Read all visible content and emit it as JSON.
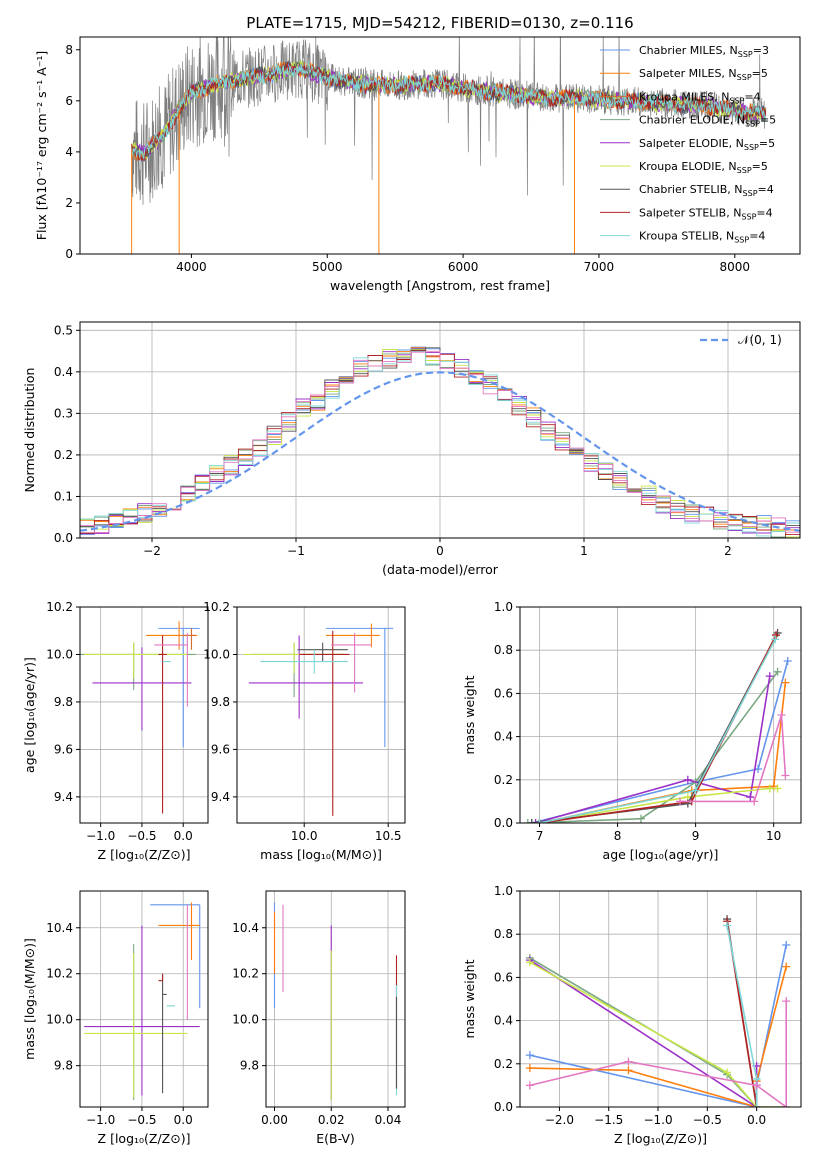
{
  "title": "PLATE=1715, MJD=54212, FIBERID=0130, z=0.116",
  "colors": {
    "chabrier_miles": "#6495ed",
    "salpeter_miles": "#ff7f0e",
    "kroupa_miles": "#d36c2a",
    "chabrier_elodie": "#7aa882",
    "salpeter_elodie": "#9b30c8",
    "kroupa_elodie": "#c8e64a",
    "chabrier_stelib": "#555555",
    "salpeter_stelib": "#b22222",
    "kroupa_stelib": "#7fd6d6",
    "spectrum": "#7f7f7f",
    "normal_curve": "#6495ed",
    "pink": "#e377c2"
  },
  "chart_data": [
    {
      "id": "spectrum",
      "type": "line",
      "title": "PLATE=1715, MJD=54212, FIBERID=0130, z=0.116",
      "xlabel": "wavelength [Angstrom, rest frame]",
      "ylabel": "Flux [fλ10⁻¹⁷ erg cm⁻² s⁻¹ A⁻¹]",
      "xlim": [
        3180,
        8480
      ],
      "ylim": [
        0,
        8.5
      ],
      "xticks": [
        4000,
        5000,
        6000,
        7000,
        8000
      ],
      "yticks": [
        0,
        2,
        4,
        6,
        8
      ],
      "legend_position": "upper-right",
      "legend": [
        {
          "label": "Chabrier MILES, N",
          "sub": "SSP",
          "suffix": "=3",
          "color": "#6495ed"
        },
        {
          "label": "Salpeter MILES, N",
          "sub": "SSP",
          "suffix": "=5",
          "color": "#ff7f0e"
        },
        {
          "label": "Kroupa MILES, N",
          "sub": "SSP",
          "suffix": "=4",
          "color": "#d36c2a"
        },
        {
          "label": "Chabrier ELODIE, N",
          "sub": "SSP",
          "suffix": "=5",
          "color": "#7aa882"
        },
        {
          "label": "Salpeter ELODIE, N",
          "sub": "SSP",
          "suffix": "=5",
          "color": "#9b30c8"
        },
        {
          "label": "Kroupa ELODIE, N",
          "sub": "SSP",
          "suffix": "=5",
          "color": "#c8e64a"
        },
        {
          "label": "Chabrier STELIB, N",
          "sub": "SSP",
          "suffix": "=4",
          "color": "#555555"
        },
        {
          "label": "Salpeter STELIB, N",
          "sub": "SSP",
          "suffix": "=4",
          "color": "#b22222"
        },
        {
          "label": "Kroupa STELIB, N",
          "sub": "SSP",
          "suffix": "=4",
          "color": "#7fd6d6"
        }
      ],
      "continuum": [
        [
          3560,
          4.1
        ],
        [
          3650,
          3.9
        ],
        [
          3700,
          4.2
        ],
        [
          3800,
          4.7
        ],
        [
          3900,
          5.6
        ],
        [
          4000,
          6.3
        ],
        [
          4200,
          6.7
        ],
        [
          4400,
          6.9
        ],
        [
          4600,
          7.1
        ],
        [
          4800,
          7.3
        ],
        [
          5000,
          6.9
        ],
        [
          5200,
          6.7
        ],
        [
          5500,
          6.6
        ],
        [
          5800,
          6.7
        ],
        [
          6000,
          6.5
        ],
        [
          6300,
          6.3
        ],
        [
          6600,
          6.1
        ],
        [
          6900,
          6.1
        ],
        [
          7200,
          6.0
        ],
        [
          7500,
          5.9
        ],
        [
          7800,
          5.8
        ],
        [
          8000,
          5.6
        ],
        [
          8230,
          5.5
        ]
      ],
      "dips": [
        {
          "x": 3560,
          "y": 0.0
        },
        {
          "x": 3910,
          "y": 0.0
        },
        {
          "x": 5380,
          "y": 0.0
        },
        {
          "x": 6820,
          "y": 0.0
        }
      ]
    },
    {
      "id": "residuals",
      "type": "histogram",
      "xlabel": "(data-model)/error",
      "ylabel": "Normed distribution",
      "xlim": [
        -2.5,
        2.5
      ],
      "ylim": [
        0,
        0.52
      ],
      "xticks": [
        -2,
        -1,
        0,
        1,
        2
      ],
      "yticks": [
        0.0,
        0.1,
        0.2,
        0.3,
        0.4,
        0.5
      ],
      "legend_position": "upper-right",
      "legend_label": "𝒩(0, 1)",
      "bin_width": 0.1,
      "base": [
        0.025,
        0.03,
        0.04,
        0.05,
        0.06,
        0.075,
        0.09,
        0.11,
        0.13,
        0.15,
        0.175,
        0.195,
        0.22,
        0.25,
        0.28,
        0.31,
        0.33,
        0.36,
        0.385,
        0.41,
        0.42,
        0.43,
        0.44,
        0.445,
        0.44,
        0.43,
        0.41,
        0.39,
        0.37,
        0.35,
        0.32,
        0.29,
        0.26,
        0.23,
        0.2,
        0.18,
        0.16,
        0.14,
        0.12,
        0.1,
        0.085,
        0.07,
        0.06,
        0.05,
        0.045,
        0.04,
        0.035,
        0.03,
        0.025,
        0.02
      ]
    },
    {
      "id": "z-vs-age",
      "type": "errorbar",
      "xlabel": "Z [log₁₀(Z/Z⊙)]",
      "ylabel": "age  [log₁₀(age/yr)]",
      "xlim": [
        -1.25,
        0.3
      ],
      "ylim": [
        9.29,
        10.2
      ],
      "xticks": [
        -1.0,
        -0.5,
        0.0
      ],
      "yticks": [
        9.4,
        9.6,
        9.8,
        10.0,
        10.2
      ],
      "points": [
        {
          "x": 0.0,
          "xerr": [
            0.3,
            0.2
          ],
          "y": 10.11,
          "yerr": [
            0.5,
            0.0
          ],
          "color": "#6495ed"
        },
        {
          "x": -0.05,
          "xerr": [
            0.4,
            0.22
          ],
          "y": 10.08,
          "yerr": [
            0.06,
            0.06
          ],
          "color": "#ff7f0e"
        },
        {
          "x": 0.1,
          "xerr": [
            0.1,
            0.05
          ],
          "y": 10.08,
          "yerr": [
            0.06,
            0.03
          ],
          "color": "#d36c2a"
        },
        {
          "x": -0.6,
          "xerr": [
            0.7,
            0.75
          ],
          "y": 10.0,
          "yerr": [
            0.15,
            0.05
          ],
          "color": "#7aa882"
        },
        {
          "x": -0.5,
          "xerr": [
            0.6,
            0.6
          ],
          "y": 9.88,
          "yerr": [
            0.2,
            0.15
          ],
          "color": "#9b30c8"
        },
        {
          "x": -0.6,
          "xerr": [
            0.6,
            0.65
          ],
          "y": 10.0,
          "yerr": [
            0.1,
            0.05
          ],
          "color": "#c8e64a"
        },
        {
          "x": -0.25,
          "xerr": [
            0.0,
            0.0
          ],
          "y": 10.02,
          "yerr": [
            0.0,
            0.0
          ],
          "color": "#555555"
        },
        {
          "x": -0.25,
          "xerr": [
            0.05,
            0.05
          ],
          "y": 10.0,
          "yerr": [
            0.67,
            0.08
          ],
          "color": "#b22222"
        },
        {
          "x": -0.2,
          "xerr": [
            0.05,
            0.05
          ],
          "y": 9.97,
          "yerr": [
            0.0,
            0.0
          ],
          "color": "#7fd6d6"
        },
        {
          "x": 0.05,
          "xerr": [
            0.4,
            0.0
          ],
          "y": 10.04,
          "yerr": [
            0.26,
            0.05
          ],
          "color": "#e377c2"
        }
      ]
    },
    {
      "id": "mass-vs-age",
      "type": "errorbar",
      "xlabel": "mass [log₁₀(M/M⊙)]",
      "ylabel": "",
      "xlim": [
        9.6,
        10.6
      ],
      "ylim": [
        9.29,
        10.2
      ],
      "xticks": [
        10.0,
        10.5
      ],
      "yticks": [
        9.4,
        9.6,
        9.8,
        10.0,
        10.2
      ],
      "points": [
        {
          "x": 10.48,
          "xerr": [
            0.35,
            0.05
          ],
          "y": 10.11,
          "yerr": [
            0.5,
            0.0
          ],
          "color": "#6495ed"
        },
        {
          "x": 10.4,
          "xerr": [
            0.27,
            0.05
          ],
          "y": 10.08,
          "yerr": [
            0.05,
            0.05
          ],
          "color": "#ff7f0e"
        },
        {
          "x": 9.94,
          "xerr": [
            0.25,
            0.3
          ],
          "y": 10.0,
          "yerr": [
            0.18,
            0.05
          ],
          "color": "#7aa882"
        },
        {
          "x": 9.97,
          "xerr": [
            0.3,
            0.38
          ],
          "y": 9.88,
          "yerr": [
            0.15,
            0.2
          ],
          "color": "#9b30c8"
        },
        {
          "x": 9.94,
          "xerr": [
            0.3,
            0.3
          ],
          "y": 10.0,
          "yerr": [
            0.08,
            0.05
          ],
          "color": "#c8e64a"
        },
        {
          "x": 10.11,
          "xerr": [
            0.15,
            0.15
          ],
          "y": 10.02,
          "yerr": [
            0.05,
            0.03
          ],
          "color": "#555555"
        },
        {
          "x": 10.17,
          "xerr": [
            0.2,
            0.1
          ],
          "y": 10.0,
          "yerr": [
            0.68,
            0.1
          ],
          "color": "#b22222"
        },
        {
          "x": 10.06,
          "xerr": [
            0.32,
            0.2
          ],
          "y": 9.97,
          "yerr": [
            0.05,
            0.05
          ],
          "color": "#7fd6d6"
        },
        {
          "x": 10.3,
          "xerr": [
            0.14,
            0.1
          ],
          "y": 10.04,
          "yerr": [
            0.2,
            0.05
          ],
          "color": "#e377c2"
        }
      ]
    },
    {
      "id": "age-vs-massweight",
      "type": "line",
      "xlabel": "age  [log₁₀(age/yr)]",
      "ylabel": "mass weight",
      "xlim": [
        6.75,
        10.35
      ],
      "ylim": [
        0,
        1.0
      ],
      "xticks": [
        7,
        8,
        9,
        10
      ],
      "yticks": [
        0.0,
        0.2,
        0.4,
        0.6,
        0.8,
        1.0
      ],
      "series": [
        {
          "color": "#6495ed",
          "x": [
            6.9,
            9.0,
            9.8,
            10.18
          ],
          "y": [
            0.0,
            0.19,
            0.25,
            0.75
          ]
        },
        {
          "color": "#ff7f0e",
          "x": [
            7.0,
            8.95,
            10.0,
            10.15
          ],
          "y": [
            0.0,
            0.15,
            0.17,
            0.65
          ]
        },
        {
          "color": "#7aa882",
          "x": [
            6.85,
            8.3,
            9.0,
            10.05
          ],
          "y": [
            0.0,
            0.02,
            0.19,
            0.7
          ]
        },
        {
          "color": "#9b30c8",
          "x": [
            6.95,
            8.9,
            9.7,
            9.95
          ],
          "y": [
            0.0,
            0.2,
            0.12,
            0.68
          ]
        },
        {
          "color": "#c8e64a",
          "x": [
            7.0,
            8.9,
            9.95,
            10.05
          ],
          "y": [
            0.0,
            0.12,
            0.16,
            0.16
          ]
        },
        {
          "color": "#555555",
          "x": [
            6.9,
            8.9,
            10.05
          ],
          "y": [
            0.0,
            0.09,
            0.88
          ]
        },
        {
          "color": "#b22222",
          "x": [
            7.0,
            8.95,
            10.03
          ],
          "y": [
            0.0,
            0.1,
            0.87
          ]
        },
        {
          "color": "#7fd6d6",
          "x": [
            7.0,
            9.0,
            10.02
          ],
          "y": [
            0.0,
            0.15,
            0.85
          ]
        },
        {
          "color": "#e377c2",
          "x": [
            8.8,
            9.75,
            10.1,
            10.15
          ],
          "y": [
            0.1,
            0.1,
            0.5,
            0.22
          ]
        }
      ]
    },
    {
      "id": "z-vs-mass",
      "type": "errorbar",
      "xlabel": "Z [log₁₀(Z/Z⊙)]",
      "ylabel": "mass [log₁₀(M/M⊙)]",
      "xlim": [
        -1.25,
        0.3
      ],
      "ylim": [
        9.62,
        10.56
      ],
      "xticks": [
        -1.0,
        -0.5,
        0.0
      ],
      "yticks": [
        9.8,
        10.0,
        10.2,
        10.4
      ],
      "points": [
        {
          "x": 0.2,
          "xerr": [
            0.6,
            0.0
          ],
          "y": 10.5,
          "yerr": [
            0.45,
            0.0
          ],
          "color": "#6495ed"
        },
        {
          "x": 0.1,
          "xerr": [
            0.4,
            0.1
          ],
          "y": 10.41,
          "yerr": [
            0.15,
            0.1
          ],
          "color": "#ff7f0e"
        },
        {
          "x": -1.0,
          "xerr": [
            0.0,
            0.0
          ],
          "y": 10.4,
          "yerr": [
            0.0,
            0.0
          ],
          "color": "#d36c2a"
        },
        {
          "x": -0.6,
          "xerr": [
            0.0,
            0.0
          ],
          "y": 10.0,
          "yerr": [
            0.35,
            0.33
          ],
          "color": "#7aa882"
        },
        {
          "x": -0.5,
          "xerr": [
            0.7,
            0.7
          ],
          "y": 9.97,
          "yerr": [
            0.3,
            0.44
          ],
          "color": "#9b30c8"
        },
        {
          "x": -0.6,
          "xerr": [
            0.6,
            0.65
          ],
          "y": 9.94,
          "yerr": [
            0.28,
            0.35
          ],
          "color": "#c8e64a"
        },
        {
          "x": -0.25,
          "xerr": [
            0.0,
            0.05
          ],
          "y": 10.11,
          "yerr": [
            0.43,
            0.09
          ],
          "color": "#555555"
        },
        {
          "x": -0.25,
          "xerr": [
            0.05,
            0.0
          ],
          "y": 10.17,
          "yerr": [
            0.0,
            0.03
          ],
          "color": "#b22222"
        },
        {
          "x": -0.2,
          "xerr": [
            0.0,
            0.1
          ],
          "y": 10.06,
          "yerr": [
            0.0,
            0.0
          ],
          "color": "#7fd6d6"
        },
        {
          "x": 0.05,
          "xerr": [
            0.0,
            0.0
          ],
          "y": 10.4,
          "yerr": [
            0.4,
            0.1
          ],
          "color": "#e377c2"
        }
      ]
    },
    {
      "id": "ebv-vs-mass",
      "type": "errorbar",
      "xlabel": "E(B-V)",
      "ylabel": "",
      "xlim": [
        -0.003,
        0.046
      ],
      "ylim": [
        9.62,
        10.56
      ],
      "xticks": [
        0.0,
        0.02,
        0.04
      ],
      "yticks": [
        9.8,
        10.0,
        10.2,
        10.4
      ],
      "points": [
        {
          "x": 0.0,
          "y": 10.25,
          "yerr": [
            0.2,
            0.26
          ],
          "color": "#6495ed"
        },
        {
          "x": 0.0,
          "y": 10.35,
          "yerr": [
            0.15,
            0.12
          ],
          "color": "#ff7f0e"
        },
        {
          "x": 0.003,
          "y": 10.3,
          "yerr": [
            0.18,
            0.2
          ],
          "color": "#e377c2"
        },
        {
          "x": 0.02,
          "y": 10.05,
          "yerr": [
            0.4,
            0.36
          ],
          "color": "#9b30c8"
        },
        {
          "x": 0.02,
          "y": 10.0,
          "yerr": [
            0.35,
            0.3
          ],
          "color": "#c8e64a"
        },
        {
          "x": 0.043,
          "y": 10.0,
          "yerr": [
            0.3,
            0.28
          ],
          "color": "#b22222"
        },
        {
          "x": 0.043,
          "y": 9.95,
          "yerr": [
            0.28,
            0.2
          ],
          "color": "#7fd6d6"
        },
        {
          "x": 0.043,
          "y": 9.9,
          "yerr": [
            0.2,
            0.2
          ],
          "color": "#555555"
        }
      ]
    },
    {
      "id": "z-vs-massweight",
      "type": "line",
      "xlabel": "Z [log₁₀(Z/Z⊙)]",
      "ylabel": "mass weight",
      "xlim": [
        -2.4,
        0.45
      ],
      "ylim": [
        0,
        1.0
      ],
      "xticks": [
        -2.0,
        -1.5,
        -1.0,
        -0.5,
        0.0
      ],
      "yticks": [
        0.0,
        0.2,
        0.4,
        0.6,
        0.8,
        1.0
      ],
      "series": [
        {
          "color": "#6495ed",
          "x": [
            -2.3,
            0.0,
            0.0,
            0.3
          ],
          "y": [
            0.24,
            0.0,
            0.1,
            0.75
          ]
        },
        {
          "color": "#ff7f0e",
          "x": [
            -2.3,
            -1.3,
            0.0,
            0.0,
            0.3
          ],
          "y": [
            0.18,
            0.17,
            0.0,
            0.12,
            0.65
          ]
        },
        {
          "color": "#7aa882",
          "x": [
            -2.3,
            -0.3,
            0.0,
            0.3
          ],
          "y": [
            0.69,
            0.15,
            0.0,
            0.0
          ]
        },
        {
          "color": "#9b30c8",
          "x": [
            -2.3,
            0.0,
            0.0
          ],
          "y": [
            0.68,
            0.0,
            0.19
          ]
        },
        {
          "color": "#c8e64a",
          "x": [
            -2.3,
            -0.3,
            0.0,
            0.3
          ],
          "y": [
            0.67,
            0.16,
            0.0,
            0.0
          ]
        },
        {
          "color": "#555555",
          "x": [
            -0.3,
            0.0,
            0.0
          ],
          "y": [
            0.87,
            0.0,
            0.1
          ]
        },
        {
          "color": "#b22222",
          "x": [
            -0.3,
            0.0
          ],
          "y": [
            0.86,
            0.0
          ]
        },
        {
          "color": "#7fd6d6",
          "x": [
            -0.3,
            0.0,
            0.0
          ],
          "y": [
            0.84,
            0.13,
            0.0
          ]
        },
        {
          "color": "#e377c2",
          "x": [
            -2.3,
            -1.3,
            0.0,
            0.3,
            0.3
          ],
          "y": [
            0.1,
            0.21,
            0.1,
            0.0,
            0.49
          ]
        }
      ]
    }
  ]
}
